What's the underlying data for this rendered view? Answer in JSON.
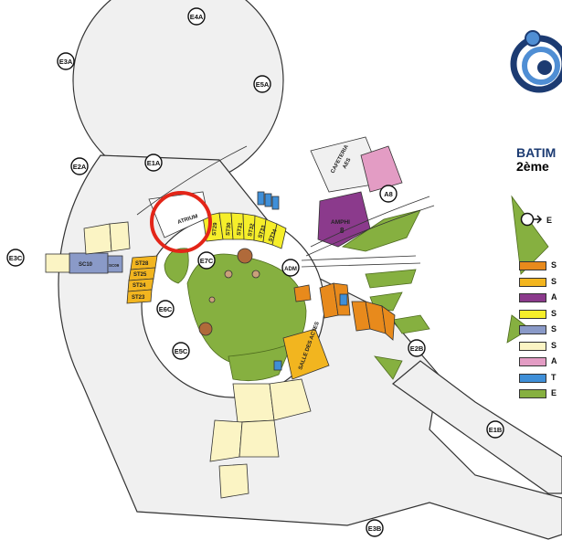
{
  "map": {
    "title_line1": "BATIM",
    "title_line2": "2ème",
    "entry_legend_label": "E",
    "entries": [
      "E4A",
      "E3A",
      "E5A",
      "E2A",
      "E1A",
      "E3C",
      "E6C",
      "E7C",
      "E5C",
      "ADM",
      "A8",
      "E2B",
      "E1B",
      "E3B"
    ],
    "rooms": {
      "atrium": "ATRIUM",
      "cafeteria": "CAFETERIA",
      "aes": "AES",
      "amphi": "AMPHI",
      "amphi_num": "8",
      "st29": "ST29",
      "st30": "ST30",
      "st31": "ST31",
      "st32": "ST32",
      "st33": "ST33",
      "st34": "ST34",
      "st28": "ST28",
      "st25": "ST25",
      "st24": "ST24",
      "st23": "ST23",
      "sc10": "SC10",
      "sc09": "SC09",
      "salle_des_actes": "SALLE DES ACTES"
    },
    "legend": [
      {
        "color": "#e88a1c",
        "label": "S"
      },
      {
        "color": "#f2b51f",
        "label": "S"
      },
      {
        "color": "#8b3a8c",
        "label": "A"
      },
      {
        "color": "#f6ee2a",
        "label": "S"
      },
      {
        "color": "#8a9ac8",
        "label": "S"
      },
      {
        "color": "#fbf4c4",
        "label": "S"
      },
      {
        "color": "#e39cc4",
        "label": "A"
      },
      {
        "color": "#3f8fd8",
        "label": "T"
      },
      {
        "color": "#86b040",
        "label": "E"
      }
    ],
    "colors": {
      "corridor": "#f0f0f0",
      "green": "#86b040",
      "highlight_circle": "#e32518"
    }
  }
}
